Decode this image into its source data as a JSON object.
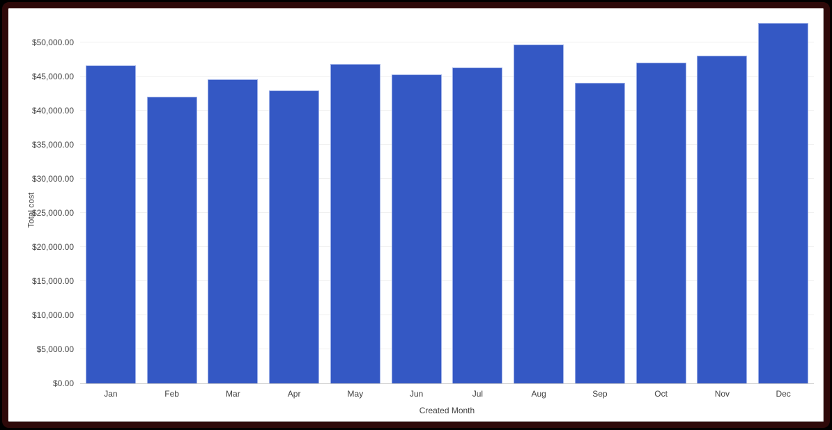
{
  "window": {
    "outer_color": "#000000",
    "frame_color": "#2e0909",
    "card_background": "#ffffff"
  },
  "chart_data": {
    "type": "bar",
    "title": "",
    "xlabel": "Created Month",
    "ylabel": "Total cost",
    "categories": [
      "Jan",
      "Feb",
      "Mar",
      "Apr",
      "May",
      "Jun",
      "Jul",
      "Aug",
      "Sep",
      "Oct",
      "Nov",
      "Dec"
    ],
    "values": [
      46600,
      42000,
      44600,
      43000,
      46800,
      45300,
      46300,
      49700,
      44100,
      47000,
      48100,
      52900
    ],
    "ylim": [
      0,
      55000
    ],
    "yticks": [
      0,
      5000,
      10000,
      15000,
      20000,
      25000,
      30000,
      35000,
      40000,
      45000,
      50000
    ],
    "ytick_labels": [
      "$0.00",
      "$5,000.00",
      "$10,000.00",
      "$15,000.00",
      "$20,000.00",
      "$25,000.00",
      "$30,000.00",
      "$35,000.00",
      "$40,000.00",
      "$45,000.00",
      "$50,000.00"
    ],
    "legend": "none",
    "grid": "horizontal",
    "colors": {
      "bar": "#3458c4",
      "bar_stroke": "#9db0e8",
      "gridline": "#f0f0f0",
      "axis_line": "#cccccc",
      "text": "#424242"
    }
  }
}
